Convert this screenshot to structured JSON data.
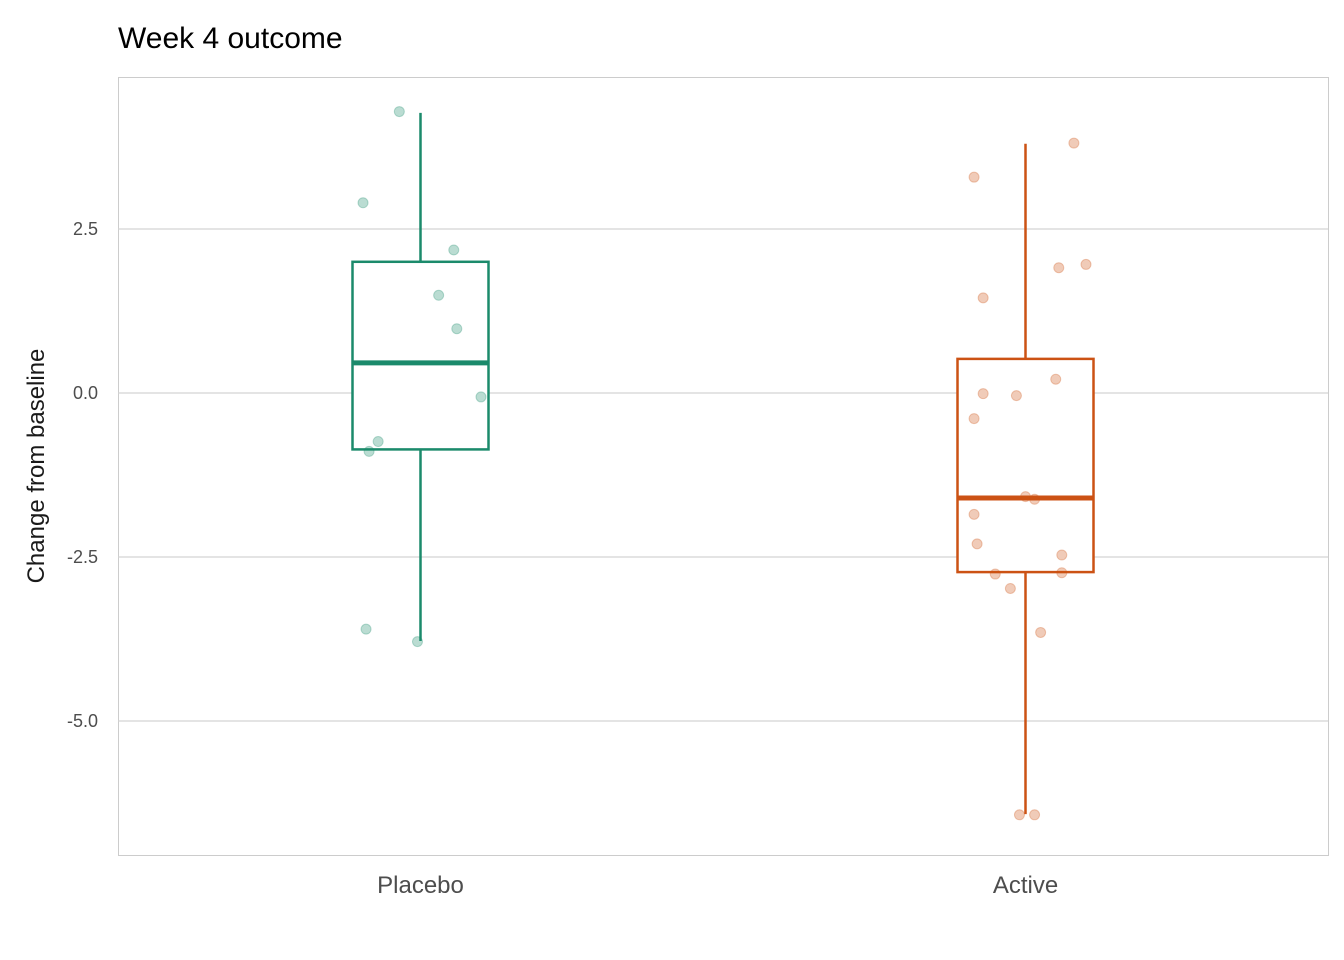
{
  "chart_data": {
    "type": "boxplot",
    "title": "Week 4 outcome",
    "xlabel": "",
    "ylabel": "Change from baseline",
    "ylim": [
      -7.0,
      4.7
    ],
    "yticks": [
      2.5,
      0.0,
      -2.5,
      -5.0
    ],
    "ytick_labels": [
      "2.5",
      "0.0",
      "-2.5",
      "-5.0"
    ],
    "grid": "horizontal",
    "legend": "none",
    "categories": [
      "Placebo",
      "Active"
    ],
    "colors": [
      "#1b8a6b",
      "#cc5214"
    ],
    "boxes": [
      {
        "category": "Placebo",
        "whisker_low": -3.78,
        "q1": -0.86,
        "median": 0.46,
        "q3": 2.0,
        "whisker_high": 4.27
      },
      {
        "category": "Active",
        "whisker_low": -6.42,
        "q1": -2.73,
        "median": -1.6,
        "q3": 0.52,
        "whisker_high": 3.8
      }
    ],
    "points": [
      {
        "category": "Placebo",
        "y": 4.29,
        "jitter": -0.07
      },
      {
        "category": "Placebo",
        "y": 2.9,
        "jitter": -0.19
      },
      {
        "category": "Placebo",
        "y": 2.18,
        "jitter": 0.11
      },
      {
        "category": "Placebo",
        "y": 1.49,
        "jitter": 0.06
      },
      {
        "category": "Placebo",
        "y": 0.98,
        "jitter": 0.12
      },
      {
        "category": "Placebo",
        "y": -0.06,
        "jitter": 0.2
      },
      {
        "category": "Placebo",
        "y": -0.74,
        "jitter": -0.14
      },
      {
        "category": "Placebo",
        "y": -0.89,
        "jitter": -0.17
      },
      {
        "category": "Placebo",
        "y": -3.6,
        "jitter": -0.18
      },
      {
        "category": "Placebo",
        "y": -3.79,
        "jitter": -0.01
      },
      {
        "category": "Active",
        "y": 3.81,
        "jitter": 0.16
      },
      {
        "category": "Active",
        "y": 3.29,
        "jitter": -0.17
      },
      {
        "category": "Active",
        "y": 1.96,
        "jitter": 0.2
      },
      {
        "category": "Active",
        "y": 1.91,
        "jitter": 0.11
      },
      {
        "category": "Active",
        "y": 1.45,
        "jitter": -0.14
      },
      {
        "category": "Active",
        "y": 0.21,
        "jitter": 0.1
      },
      {
        "category": "Active",
        "y": -0.01,
        "jitter": -0.14
      },
      {
        "category": "Active",
        "y": -0.04,
        "jitter": -0.03
      },
      {
        "category": "Active",
        "y": -0.39,
        "jitter": -0.17
      },
      {
        "category": "Active",
        "y": -1.58,
        "jitter": 0.0
      },
      {
        "category": "Active",
        "y": -1.62,
        "jitter": 0.03
      },
      {
        "category": "Active",
        "y": -1.85,
        "jitter": -0.17
      },
      {
        "category": "Active",
        "y": -2.3,
        "jitter": -0.16
      },
      {
        "category": "Active",
        "y": -2.47,
        "jitter": 0.12
      },
      {
        "category": "Active",
        "y": -2.74,
        "jitter": 0.12
      },
      {
        "category": "Active",
        "y": -2.76,
        "jitter": -0.1
      },
      {
        "category": "Active",
        "y": -2.98,
        "jitter": -0.05
      },
      {
        "category": "Active",
        "y": -3.65,
        "jitter": 0.05
      },
      {
        "category": "Active",
        "y": -6.43,
        "jitter": -0.02
      },
      {
        "category": "Active",
        "y": -6.43,
        "jitter": 0.03
      }
    ]
  }
}
